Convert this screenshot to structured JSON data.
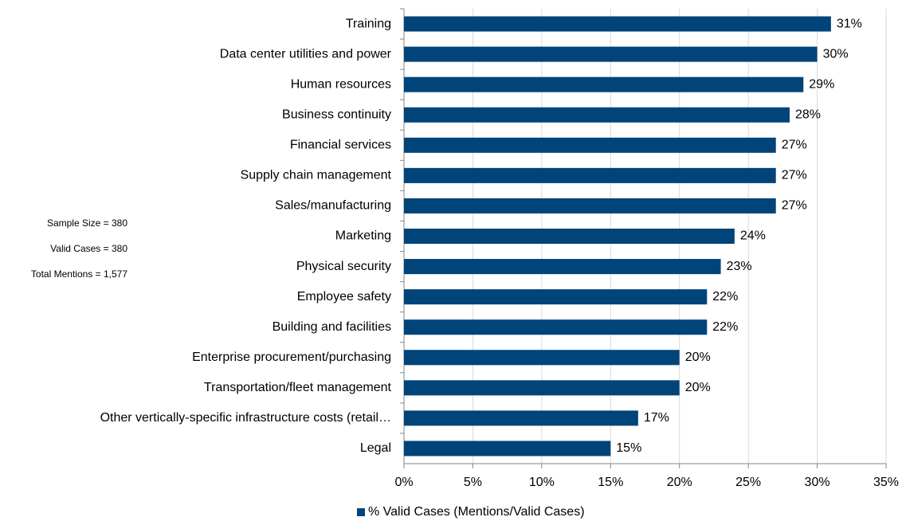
{
  "chart_data": {
    "type": "barh",
    "categories": [
      "Training",
      "Data center utilities and power",
      "Human resources",
      "Business continuity",
      "Financial services",
      "Supply chain management",
      "Sales/manufacturing",
      "Marketing",
      "Physical security",
      "Employee safety",
      "Building and facilities",
      "Enterprise procurement/purchasing",
      "Transportation/fleet management",
      "Other vertically-specific infrastructure costs (retail…",
      "Legal"
    ],
    "series": [
      {
        "name": "% Valid Cases (Mentions/Valid Cases)",
        "color": "#004479",
        "values": [
          31,
          30,
          29,
          28,
          27,
          27,
          27,
          24,
          23,
          22,
          22,
          20,
          20,
          17,
          15
        ],
        "value_labels": [
          "31%",
          "30%",
          "29%",
          "28%",
          "27%",
          "27%",
          "27%",
          "24%",
          "23%",
          "22%",
          "22%",
          "20%",
          "20%",
          "17%",
          "15%"
        ]
      }
    ],
    "xlim": [
      0,
      35
    ],
    "xticks": [
      {
        "value": 0,
        "label": "0%"
      },
      {
        "value": 5,
        "label": "5%"
      },
      {
        "value": 10,
        "label": "10%"
      },
      {
        "value": 15,
        "label": "15%"
      },
      {
        "value": 20,
        "label": "20%"
      },
      {
        "value": 25,
        "label": "25%"
      },
      {
        "value": 30,
        "label": "30%"
      },
      {
        "value": 35,
        "label": "35%"
      }
    ],
    "grid": true,
    "legend": "bottom",
    "annotations": [
      "Sample Size = 380",
      "Valid Cases = 380",
      "Total Mentions = 1,577"
    ]
  }
}
